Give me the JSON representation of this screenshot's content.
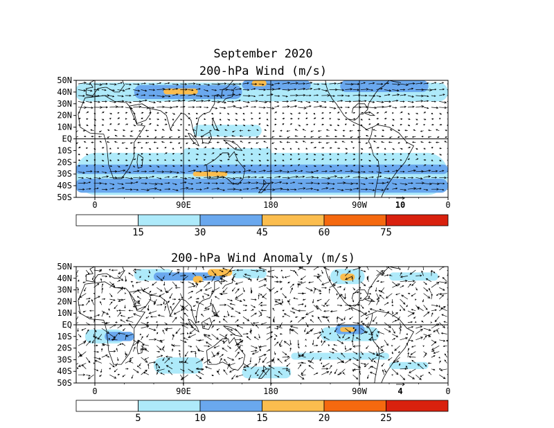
{
  "header": {
    "month": "September 2020"
  },
  "panels": [
    {
      "title": "200-hPa Wind (m/s)",
      "lat_labels": [
        "50N",
        "40N",
        "30N",
        "20N",
        "10N",
        "EQ",
        "10S",
        "20S",
        "30S",
        "40S",
        "50S"
      ],
      "lon_labels": [
        "0",
        "90E",
        "180",
        "90W",
        "0"
      ],
      "reference_vector_label": "10",
      "colorbar": {
        "levels": [
          "15",
          "30",
          "45",
          "60",
          "75"
        ],
        "colors": [
          "#ffffff",
          "#aeeafa",
          "#6aa8ee",
          "#fbbd4e",
          "#f5690f",
          "#d9210e"
        ]
      }
    },
    {
      "title": "200-hPa Wind Anomaly (m/s)",
      "lat_labels": [
        "50N",
        "40N",
        "30N",
        "20N",
        "10N",
        "EQ",
        "10S",
        "20S",
        "30S",
        "40S",
        "50S"
      ],
      "lon_labels": [
        "0",
        "90E",
        "180",
        "90W",
        "0"
      ],
      "reference_vector_label": "4",
      "colorbar": {
        "levels": [
          "5",
          "10",
          "15",
          "20",
          "25"
        ],
        "colors": [
          "#ffffff",
          "#aeeafa",
          "#6aa8ee",
          "#fbbd4e",
          "#f5690f",
          "#d9210e"
        ]
      }
    }
  ]
}
